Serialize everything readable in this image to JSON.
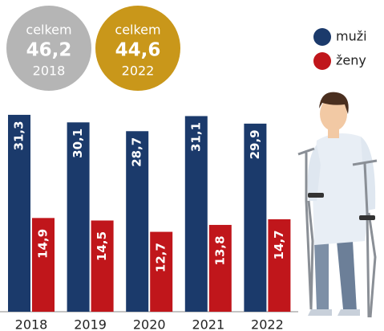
{
  "chart_data": {
    "type": "bar",
    "categories": [
      "2018",
      "2019",
      "2020",
      "2021",
      "2022"
    ],
    "series": [
      {
        "name": "muži",
        "color": "#1b3a6b",
        "values": [
          31.3,
          30.1,
          28.7,
          31.1,
          29.9
        ],
        "value_labels": [
          "31,3",
          "30,1",
          "28,7",
          "31,1",
          "29,9"
        ]
      },
      {
        "name": "ženy",
        "color": "#c0161b",
        "values": [
          14.9,
          14.5,
          12.7,
          13.8,
          14.7
        ],
        "value_labels": [
          "14,9",
          "14,5",
          "12,7",
          "13,8",
          "14,7"
        ]
      }
    ],
    "totals": [
      {
        "caption": "celkem",
        "total": {
          "value": 46.2,
          "label": "46,2"
        },
        "year": "2018",
        "color": "#b5b5b5"
      },
      {
        "caption": "celkem",
        "total": {
          "value": 44.6,
          "label": "44,6"
        },
        "year": "2022",
        "color": "#c9971a"
      }
    ]
  }
}
